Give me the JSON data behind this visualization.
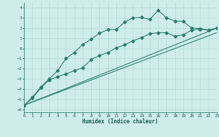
{
  "xlabel": "Humidex (Indice chaleur)",
  "xlim": [
    0,
    23
  ],
  "ylim": [
    -6.3,
    4.5
  ],
  "yticks": [
    -6,
    -5,
    -4,
    -3,
    -2,
    -1,
    0,
    1,
    2,
    3,
    4
  ],
  "xticks": [
    0,
    1,
    2,
    3,
    4,
    5,
    6,
    7,
    8,
    9,
    10,
    11,
    12,
    13,
    14,
    15,
    16,
    17,
    18,
    19,
    20,
    21,
    22,
    23
  ],
  "line_color": "#2a7d6e",
  "bg_color": "#ceecea",
  "grid_color": "#b8ddd8",
  "line1_x": [
    0,
    1,
    2,
    3,
    4,
    5,
    6,
    7,
    8,
    9,
    10,
    11,
    12,
    13,
    14,
    15,
    16,
    17,
    18,
    19,
    20,
    21,
    22,
    23
  ],
  "line1_y": [
    -5.6,
    -4.8,
    -3.8,
    -3.0,
    -2.2,
    -1.0,
    -0.4,
    0.4,
    0.9,
    1.5,
    1.85,
    1.85,
    2.6,
    3.0,
    3.05,
    2.85,
    3.75,
    3.0,
    2.7,
    2.65,
    2.0,
    1.95,
    1.8,
    2.0
  ],
  "line2_x": [
    0,
    1,
    2,
    3,
    4,
    5,
    6,
    7,
    8,
    9,
    10,
    11,
    12,
    13,
    14,
    15,
    16,
    17,
    18,
    19,
    20,
    21,
    22,
    23
  ],
  "line2_y": [
    -5.6,
    -4.9,
    -3.9,
    -3.1,
    -2.8,
    -2.5,
    -2.2,
    -1.9,
    -1.1,
    -0.7,
    -0.4,
    0.05,
    0.35,
    0.75,
    1.05,
    1.45,
    1.55,
    1.55,
    1.2,
    1.35,
    1.8,
    1.9,
    1.8,
    2.0
  ],
  "line3_x": [
    0,
    23
  ],
  "line3_y": [
    -5.6,
    2.0
  ],
  "line4_x": [
    0,
    23
  ],
  "line4_y": [
    -5.6,
    1.55
  ]
}
